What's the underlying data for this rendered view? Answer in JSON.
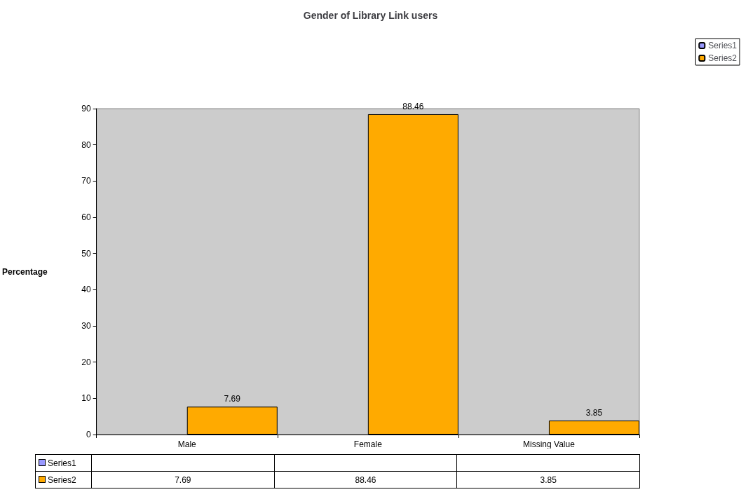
{
  "chart_data": {
    "type": "bar",
    "title": "Gender of Library Link users",
    "ylabel": "Percentage",
    "categories": [
      "Male",
      "Female",
      "Missing Value"
    ],
    "series": [
      {
        "name": "Series1",
        "color": "#9999ff",
        "values": [
          null,
          null,
          null
        ]
      },
      {
        "name": "Series2",
        "color": "#ffaa00",
        "values": [
          7.69,
          88.46,
          3.85
        ],
        "value_labels": [
          "7.69",
          "88.46",
          "3.85"
        ]
      }
    ],
    "ylim": [
      0,
      90
    ],
    "yticks": [
      0,
      10,
      20,
      30,
      40,
      50,
      60,
      70,
      80,
      90
    ],
    "grid": false,
    "legend": "top right",
    "data_labels": true,
    "annotations": [
      "7.69",
      "88.46",
      "3.85"
    ]
  }
}
